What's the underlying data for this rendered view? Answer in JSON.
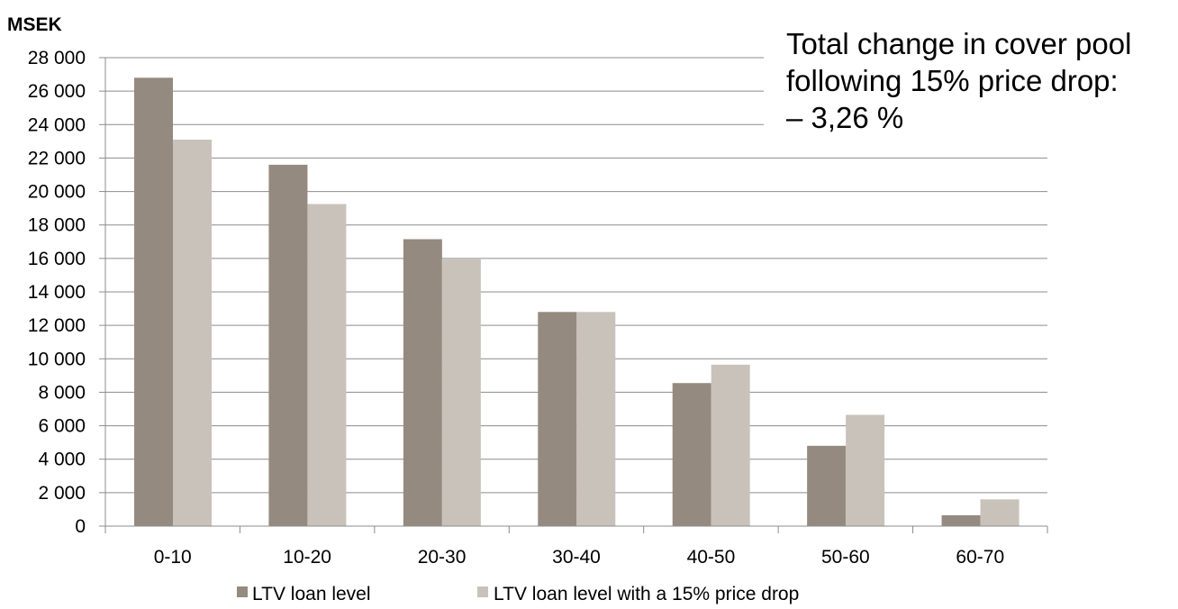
{
  "chart_data": {
    "type": "bar",
    "unit_label": "MSEK",
    "categories": [
      "0-10",
      "10-20",
      "20-30",
      "30-40",
      "40-50",
      "50-60",
      "60-70"
    ],
    "series": [
      {
        "name": "LTV loan level",
        "color": "#958a7f",
        "values": [
          26800,
          21600,
          17150,
          12800,
          8550,
          4800,
          650
        ]
      },
      {
        "name": "LTV loan level with a 15% price drop",
        "color": "#c9c2ba",
        "values": [
          23100,
          19250,
          15950,
          12800,
          9650,
          6650,
          1600
        ]
      }
    ],
    "ylim": [
      0,
      28000
    ],
    "ytick_labels": [
      "0",
      "2 000",
      "4 000",
      "6 000",
      "8 000",
      "10 000",
      "12 000",
      "14 000",
      "16 000",
      "18 000",
      "20 000",
      "22 000",
      "24 000",
      "26 000",
      "28 000"
    ],
    "grid": true,
    "legend_position": "bottom",
    "annotation": [
      "Total change in cover pool",
      "following 15% price drop:",
      "– 3,26 %"
    ]
  }
}
